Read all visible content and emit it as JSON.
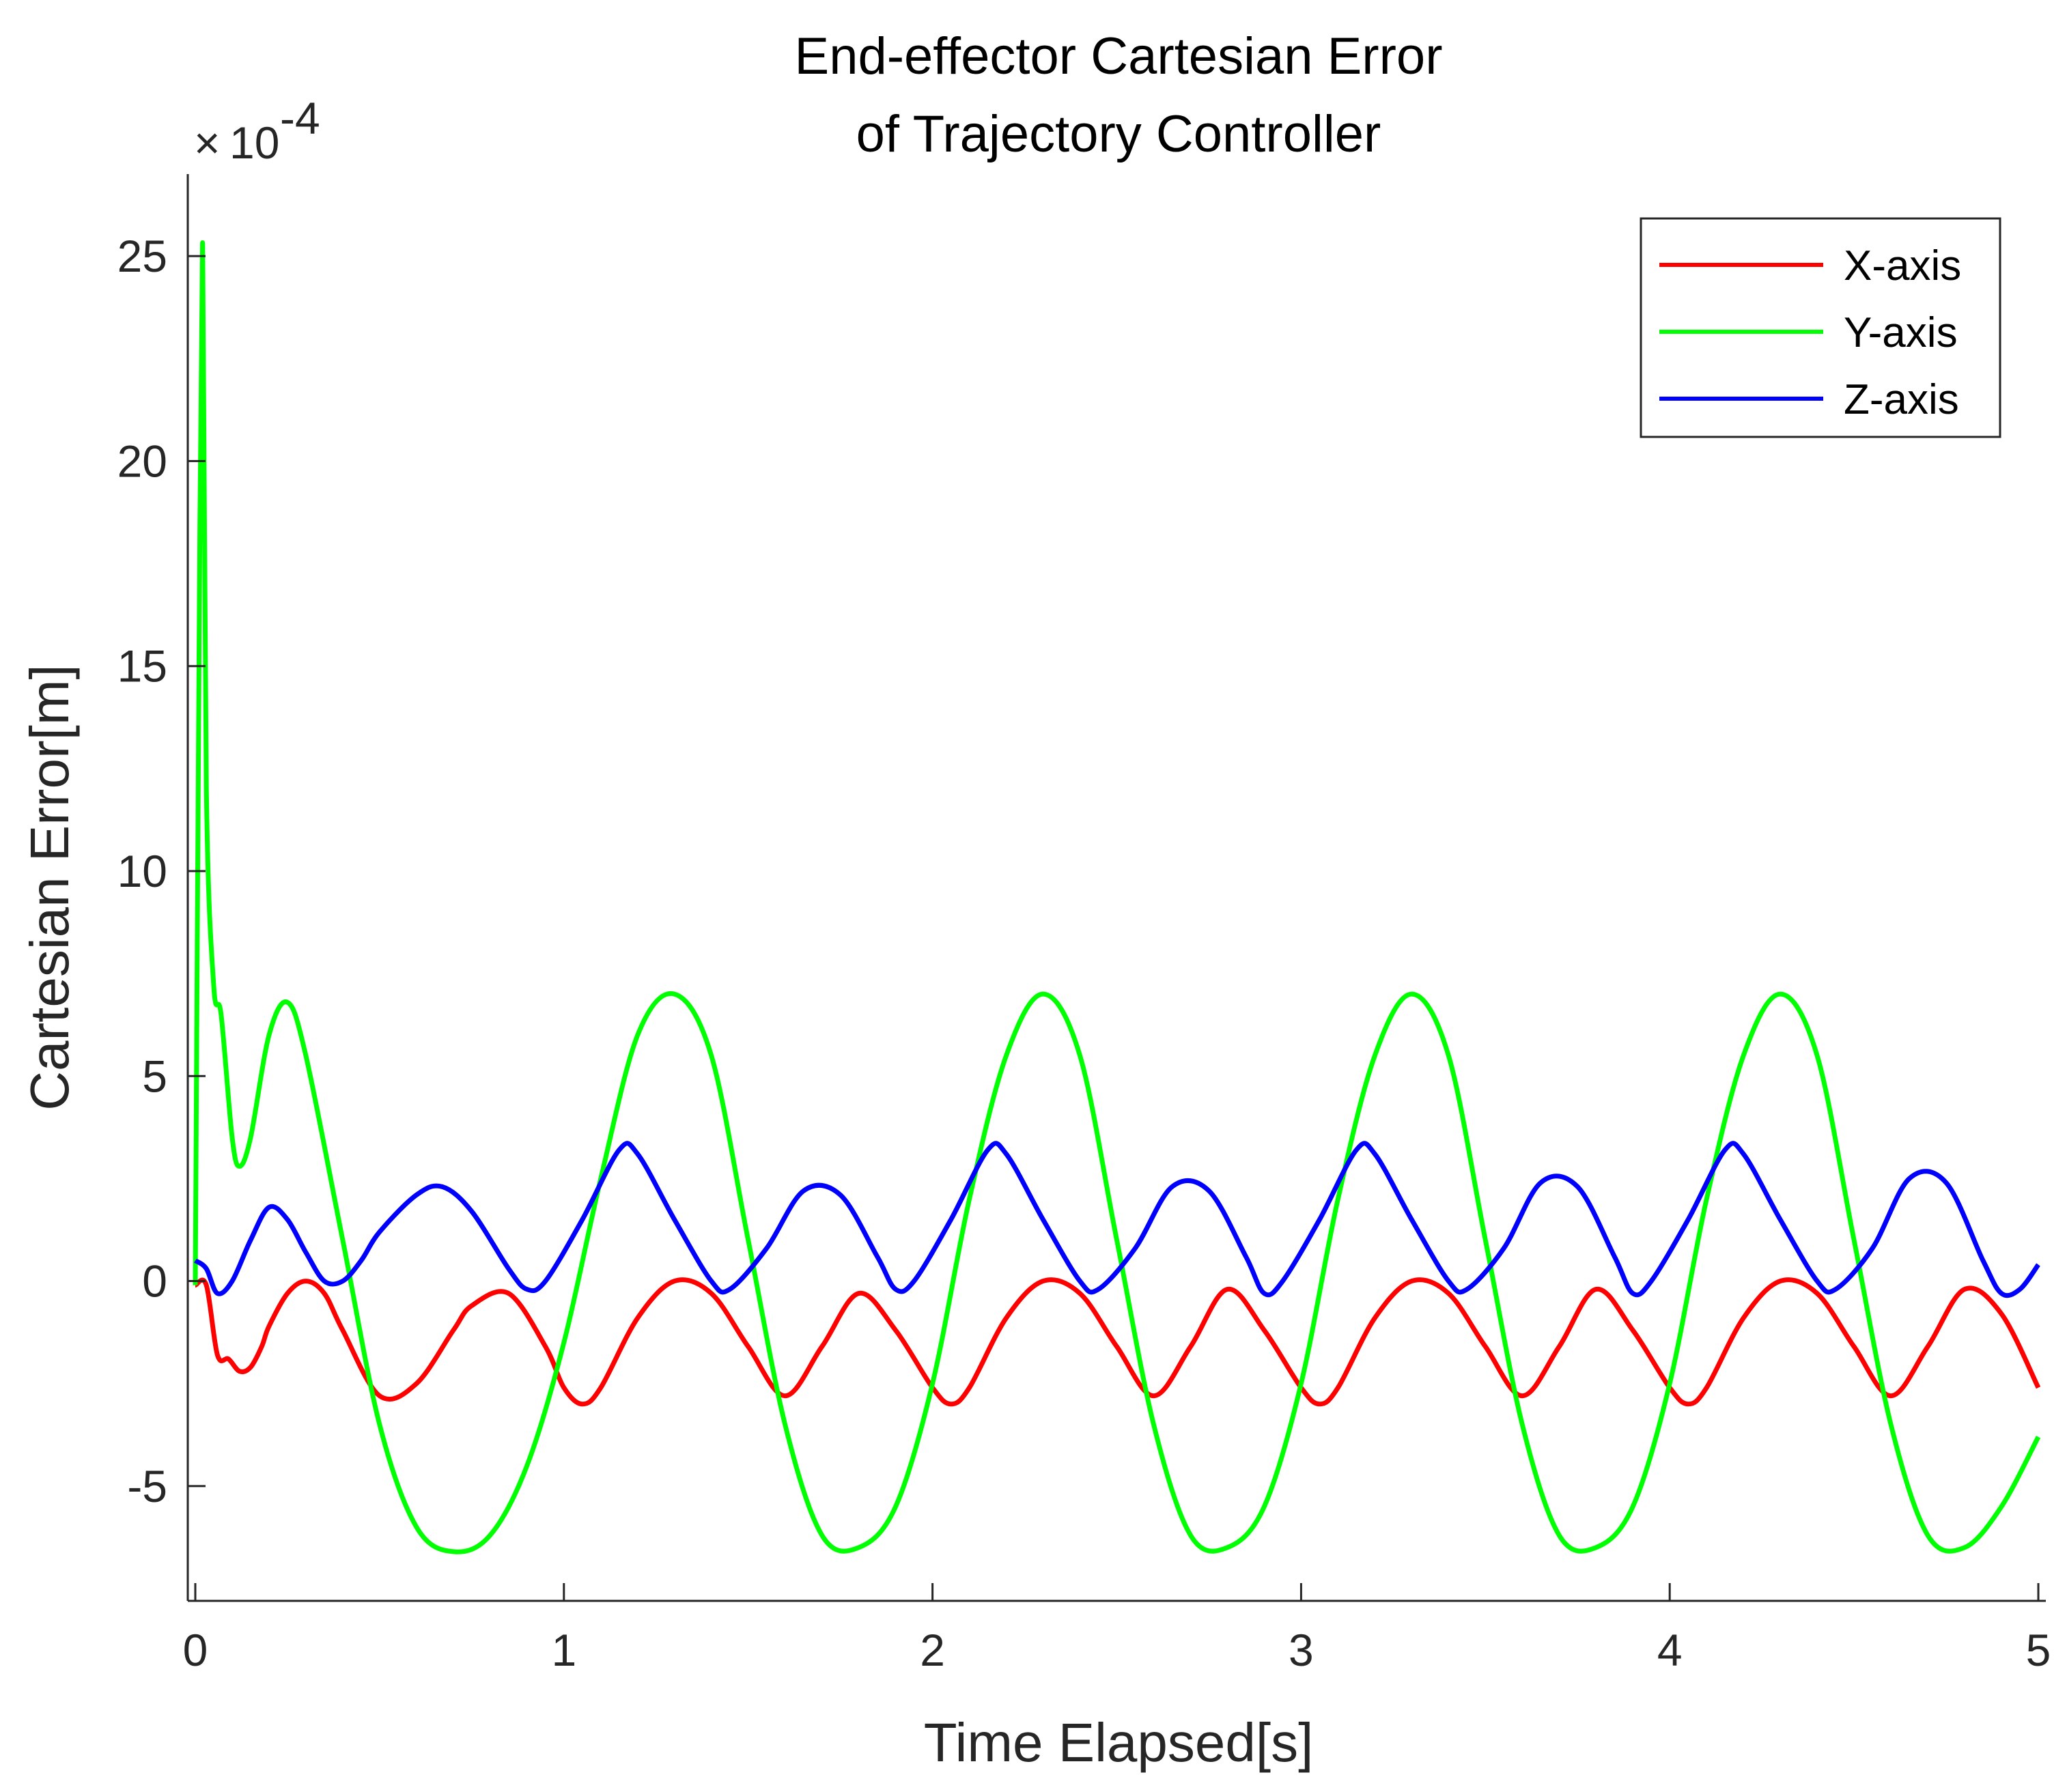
{
  "chart_data": {
    "type": "line",
    "title": [
      "End-effector Cartesian Error",
      "of Trajectory Controller"
    ],
    "xlabel": "Time Elapsed[s]",
    "ylabel": "Cartesian Error[m]",
    "y_multiplier_base": "10",
    "y_multiplier_exponent": "-4",
    "xlim": [
      0,
      5
    ],
    "ylim": [
      -7.8,
      27
    ],
    "xticks": [
      0,
      1,
      2,
      3,
      4,
      5
    ],
    "xtick_labels": [
      "0",
      "1",
      "2",
      "3",
      "4",
      "5"
    ],
    "yticks": [
      -5,
      0,
      5,
      10,
      15,
      20,
      25
    ],
    "ytick_labels": [
      "-5",
      "0",
      "5",
      "10",
      "15",
      "20",
      "25"
    ],
    "grid": false,
    "legend_position": "top-right",
    "series": [
      {
        "name": "X-axis",
        "color": "#ff0000",
        "x": [
          0,
          0.03,
          0.06,
          0.09,
          0.12,
          0.15,
          0.18,
          0.2,
          0.25,
          0.3,
          0.35,
          0.4,
          0.5,
          0.6,
          0.7,
          0.75,
          0.85,
          0.95,
          1.0,
          1.05,
          1.1,
          1.2,
          1.3,
          1.4,
          1.5,
          1.6,
          1.7,
          1.8,
          1.9,
          2.0,
          2.05,
          2.1,
          2.2,
          2.3,
          2.4,
          2.5,
          2.6,
          2.7,
          2.8,
          2.9,
          3.0,
          3.05,
          3.1,
          3.2,
          3.3,
          3.4,
          3.5,
          3.6,
          3.7,
          3.8,
          3.9,
          4.0,
          4.05,
          4.1,
          4.2,
          4.3,
          4.4,
          4.5,
          4.6,
          4.7,
          4.8,
          4.9,
          5.0
        ],
        "y": [
          -0.1,
          -0.1,
          -1.8,
          -1.9,
          -2.2,
          -2.1,
          -1.6,
          -1.1,
          -0.3,
          0.0,
          -0.3,
          -1.2,
          -2.8,
          -2.5,
          -1.2,
          -0.6,
          -0.3,
          -1.6,
          -2.6,
          -3.0,
          -2.6,
          -0.9,
          0.0,
          -0.3,
          -1.6,
          -2.8,
          -1.6,
          -0.3,
          -1.2,
          -2.6,
          -3.0,
          -2.6,
          -0.9,
          0.0,
          -0.3,
          -1.6,
          -2.8,
          -1.6,
          -0.2,
          -1.2,
          -2.6,
          -3.0,
          -2.6,
          -0.9,
          0.0,
          -0.3,
          -1.6,
          -2.8,
          -1.6,
          -0.2,
          -1.2,
          -2.6,
          -3.0,
          -2.6,
          -0.9,
          0.0,
          -0.3,
          -1.6,
          -2.8,
          -1.6,
          -0.2,
          -0.8,
          -2.6
        ]
      },
      {
        "name": "Y-axis",
        "color": "#00ff00",
        "x": [
          0,
          0.01,
          0.02,
          0.03,
          0.05,
          0.07,
          0.1,
          0.12,
          0.15,
          0.2,
          0.25,
          0.3,
          0.4,
          0.5,
          0.6,
          0.7,
          0.8,
          0.9,
          1.0,
          1.1,
          1.2,
          1.3,
          1.4,
          1.5,
          1.6,
          1.7,
          1.8,
          1.9,
          2.0,
          2.1,
          2.2,
          2.3,
          2.4,
          2.5,
          2.6,
          2.7,
          2.8,
          2.9,
          3.0,
          3.1,
          3.2,
          3.3,
          3.4,
          3.5,
          3.6,
          3.7,
          3.8,
          3.9,
          4.0,
          4.1,
          4.2,
          4.3,
          4.4,
          4.5,
          4.6,
          4.7,
          4.8,
          4.9,
          5.0
        ],
        "y": [
          -0.1,
          15.0,
          25.3,
          12.0,
          7.2,
          6.5,
          3.5,
          2.8,
          3.5,
          6.0,
          6.8,
          5.5,
          1.0,
          -3.5,
          -6.0,
          -6.6,
          -6.2,
          -4.5,
          -1.5,
          2.5,
          6.0,
          7.0,
          5.5,
          1.0,
          -3.5,
          -6.2,
          -6.5,
          -5.5,
          -2.5,
          2.0,
          5.5,
          7.0,
          5.5,
          1.0,
          -3.5,
          -6.2,
          -6.5,
          -5.5,
          -2.5,
          2.0,
          5.5,
          7.0,
          5.5,
          1.0,
          -3.5,
          -6.2,
          -6.5,
          -5.5,
          -2.5,
          2.0,
          5.5,
          7.0,
          5.5,
          1.0,
          -3.5,
          -6.2,
          -6.5,
          -5.5,
          -3.8
        ]
      },
      {
        "name": "Z-axis",
        "color": "#0000ff",
        "x": [
          0,
          0.03,
          0.06,
          0.1,
          0.15,
          0.2,
          0.25,
          0.3,
          0.35,
          0.4,
          0.45,
          0.5,
          0.6,
          0.67,
          0.75,
          0.85,
          0.9,
          0.95,
          1.05,
          1.15,
          1.2,
          1.3,
          1.4,
          1.45,
          1.55,
          1.65,
          1.75,
          1.85,
          1.9,
          1.95,
          2.05,
          2.15,
          2.2,
          2.3,
          2.4,
          2.45,
          2.55,
          2.65,
          2.75,
          2.85,
          2.9,
          2.95,
          3.05,
          3.15,
          3.2,
          3.3,
          3.4,
          3.45,
          3.55,
          3.65,
          3.75,
          3.85,
          3.9,
          3.95,
          4.05,
          4.15,
          4.2,
          4.3,
          4.4,
          4.45,
          4.55,
          4.65,
          4.75,
          4.85,
          4.9,
          4.95,
          5.0
        ],
        "y": [
          0.5,
          0.3,
          -0.3,
          0.0,
          1.0,
          1.8,
          1.5,
          0.7,
          0.0,
          0.0,
          0.5,
          1.2,
          2.1,
          2.3,
          1.7,
          0.3,
          -0.2,
          0.0,
          1.5,
          3.2,
          3.1,
          1.5,
          0.0,
          -0.2,
          0.8,
          2.2,
          2.1,
          0.6,
          -0.2,
          0.0,
          1.5,
          3.2,
          3.1,
          1.5,
          0.0,
          -0.2,
          0.8,
          2.3,
          2.2,
          0.6,
          -0.3,
          0.0,
          1.5,
          3.2,
          3.1,
          1.5,
          0.0,
          -0.2,
          0.8,
          2.4,
          2.3,
          0.6,
          -0.3,
          0.0,
          1.5,
          3.2,
          3.1,
          1.5,
          0.0,
          -0.2,
          0.8,
          2.5,
          2.4,
          0.5,
          -0.3,
          -0.2,
          0.4
        ]
      }
    ]
  }
}
